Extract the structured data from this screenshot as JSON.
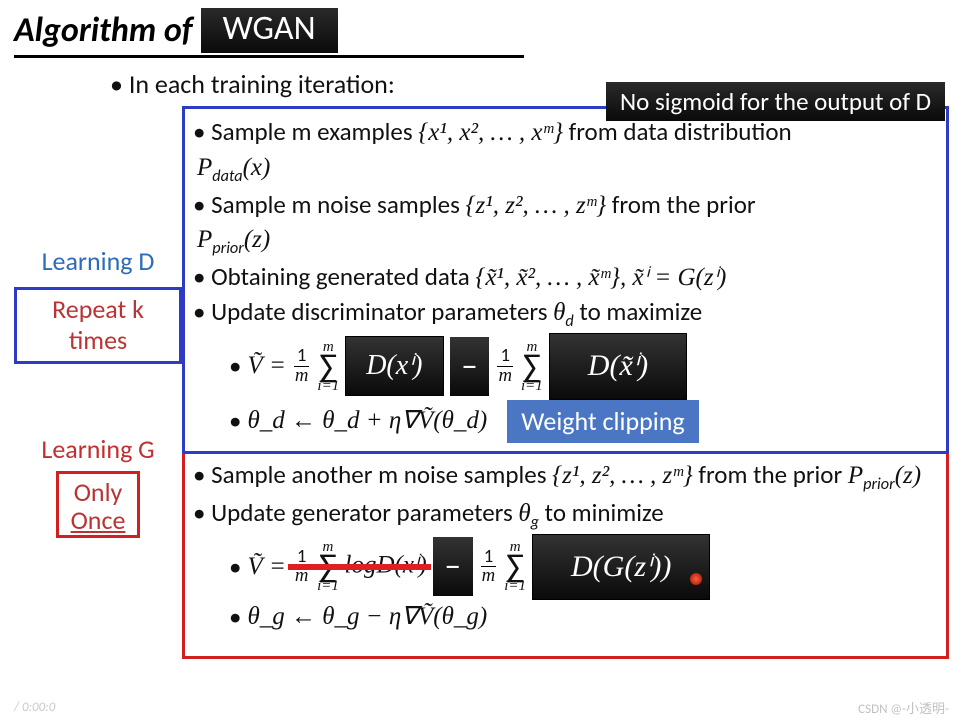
{
  "title": {
    "prefix": "Algorithm of",
    "badge": "WGAN"
  },
  "intro": "In each training iteration:",
  "no_sigmoid": "No sigmoid for the output of D",
  "side": {
    "learn_d": "Learning D",
    "repeat": "Repeat k times",
    "learn_g": "Learning G",
    "only": "Only",
    "once": "Once"
  },
  "d_box": {
    "s1a": "Sample m examples ",
    "s1set": "{x¹, x², … , xᵐ}",
    "s1b": " from data distribution ",
    "s1p": "P",
    "s1psub": "data",
    "s1arg": "(x)",
    "s2a": "Sample m noise samples ",
    "s2set": "{z¹, z², … , zᵐ}",
    "s2b": " from the prior ",
    "s2p": "P",
    "s2psub": "prior",
    "s2arg": "(z)",
    "s3a": "Obtaining generated data ",
    "s3set": "{x̃¹, x̃², … , x̃ᵐ}",
    "s3eq": ", x̃ⁱ = G(zⁱ)",
    "s4a": "Update discriminator parameters ",
    "s4theta": "θ",
    "s4sub": "d",
    "s4b": " to maximize",
    "v_lhs": "Ṽ  =",
    "frac_num": "1",
    "frac_den": "m",
    "sum_top": "m",
    "sum_bot": "i=1",
    "dxi": "D(xⁱ)",
    "minus": "−",
    "dxt": "D(x̃ⁱ)",
    "upd": "θ_d ← θ_d + η∇Ṽ(θ_d)",
    "weight_clip": "Weight clipping"
  },
  "g_box": {
    "s1a": "Sample another m noise samples ",
    "s1set": "{z¹, z², … , zᵐ}",
    "s1b": " from the prior ",
    "s1p": "P",
    "s1psub": "prior",
    "s1arg": "(z)",
    "s2a": "Update generator parameters ",
    "s2theta": "θ",
    "s2sub": "g",
    "s2b": " to minimize",
    "v_lhs": "Ṽ  =",
    "strike": "logD(xⁱ)",
    "minus": "−",
    "dgz": "D(G(zⁱ))",
    "upd": "θ_g ← θ_g − η∇Ṽ(θ_g)"
  },
  "watermark": "CSDN @-小透明-",
  "pagecount": "/ 0:00:0"
}
